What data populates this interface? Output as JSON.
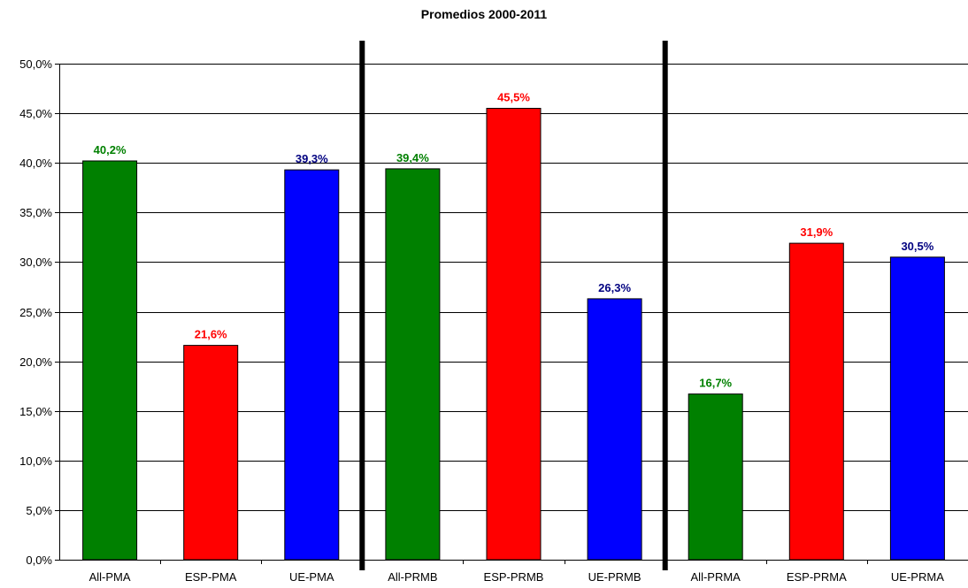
{
  "chart_data": {
    "type": "bar",
    "title": "Promedios 2000-2011",
    "xlabel": "",
    "ylabel": "",
    "ylim": [
      0,
      50
    ],
    "ytick_step": 5,
    "yticks": [
      "0,0%",
      "5,0%",
      "10,0%",
      "15,0%",
      "20,0%",
      "25,0%",
      "30,0%",
      "35,0%",
      "40,0%",
      "45,0%",
      "50,0%"
    ],
    "grid": true,
    "legend": "none",
    "categories": [
      "All-PMA",
      "ESP-PMA",
      "UE-PMA",
      "All-PRMB",
      "ESP-PRMB",
      "UE-PRMB",
      "All-PRMA",
      "ESP-PRMA",
      "UE-PRMA"
    ],
    "values": [
      40.2,
      21.6,
      39.3,
      39.4,
      45.5,
      26.3,
      16.7,
      31.9,
      30.5
    ],
    "value_labels": [
      "40,2%",
      "21,6%",
      "39,3%",
      "39,4%",
      "45,5%",
      "26,3%",
      "16,7%",
      "31,9%",
      "30,5%"
    ],
    "bar_colors": [
      "#008000",
      "#ff0000",
      "#0000ff",
      "#008000",
      "#ff0000",
      "#0000ff",
      "#008000",
      "#ff0000",
      "#0000ff"
    ],
    "label_colors": [
      "#008000",
      "#ff0000",
      "#000080",
      "#008000",
      "#ff0000",
      "#000080",
      "#008000",
      "#ff0000",
      "#000080"
    ],
    "group_separators_after": [
      3,
      6
    ],
    "separator_color": "#000000",
    "grid_color": "#000000"
  }
}
